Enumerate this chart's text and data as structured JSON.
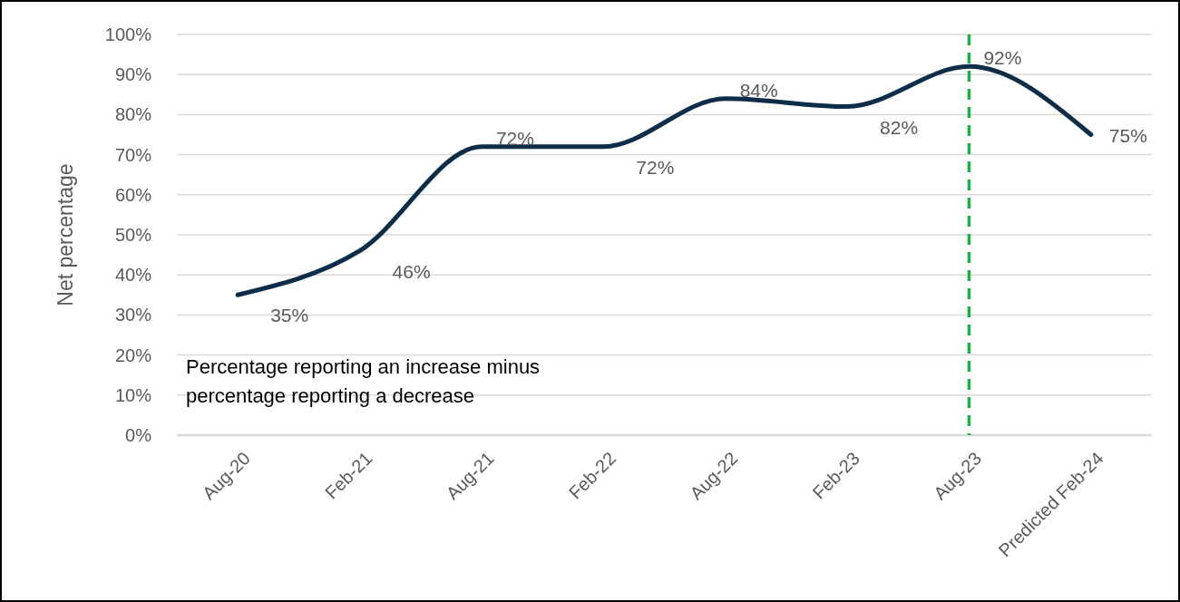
{
  "chart_data": {
    "type": "line",
    "ylabel": "Net percentage",
    "categories": [
      "Aug-20",
      "Feb-21",
      "Aug-21",
      "Feb-22",
      "Aug-22",
      "Feb-23",
      "Aug-23",
      "Predicted Feb-24"
    ],
    "series": [
      {
        "color": "#0e2d48",
        "values": [
          35,
          46,
          72,
          72,
          84,
          82,
          92,
          75
        ]
      }
    ],
    "ylim": [
      0,
      100
    ],
    "yticks": [
      {
        "value": 0,
        "label": "0%"
      },
      {
        "value": 10,
        "label": "10%"
      },
      {
        "value": 20,
        "label": "20%"
      },
      {
        "value": 30,
        "label": "30%"
      },
      {
        "value": 40,
        "label": "40%"
      },
      {
        "value": 50,
        "label": "50%"
      },
      {
        "value": 60,
        "label": "60%"
      },
      {
        "value": 70,
        "label": "70%"
      },
      {
        "value": 80,
        "label": "80%"
      },
      {
        "value": 90,
        "label": "90%"
      },
      {
        "value": 100,
        "label": "100%"
      }
    ],
    "value_labels": [
      "35%",
      "46%",
      "72%",
      "72%",
      "84%",
      "82%",
      "92%",
      "75%"
    ],
    "ref_lines": [
      {
        "axis": "x",
        "value": "Aug-23",
        "color": "#1fae4b",
        "line_style": "dashed"
      }
    ],
    "annotations": [
      "Percentage reporting an increase minus percentage reporting a decrease"
    ],
    "grid": "y",
    "marker": "none",
    "line_style": "solid"
  }
}
